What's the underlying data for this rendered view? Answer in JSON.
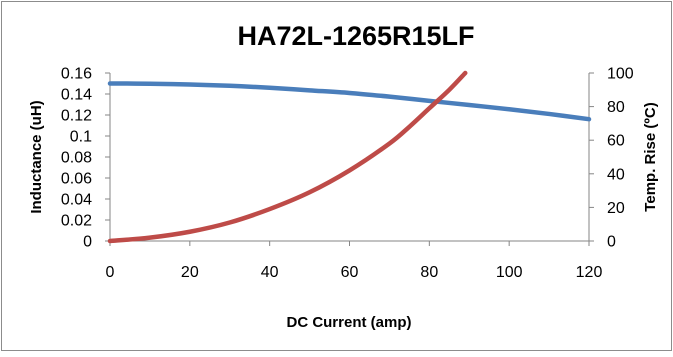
{
  "chart_data": {
    "type": "line",
    "title": "HA72L-1265R15LF",
    "xlabel": "DC Current (amp)",
    "ylabel": "Inductance (uH)",
    "y2label": "Temp. Rise (ºC)",
    "xlim": [
      0,
      120
    ],
    "ylim": [
      0,
      0.16
    ],
    "y2lim": [
      0,
      100
    ],
    "x_ticks": [
      "0",
      "20",
      "40",
      "60",
      "80",
      "100",
      "120"
    ],
    "y_ticks": [
      "0",
      "0.02",
      "0.04",
      "0.06",
      "0.08",
      "0.1",
      "0.12",
      "0.14",
      "0.16"
    ],
    "y2_ticks": [
      "0",
      "20",
      "40",
      "60",
      "80",
      "100"
    ],
    "grid": false,
    "legend": "none",
    "series": [
      {
        "axis": "left",
        "color": "#4A7EBB",
        "x": [
          0,
          10,
          20,
          30,
          40,
          50,
          60,
          70,
          80,
          90,
          100,
          110,
          120
        ],
        "values": [
          0.15,
          0.1498,
          0.149,
          0.1478,
          0.146,
          0.1435,
          0.141,
          0.1375,
          0.1335,
          0.1295,
          0.1255,
          0.121,
          0.116
        ]
      },
      {
        "axis": "right",
        "color": "#BE4B48",
        "x": [
          0,
          10,
          20,
          30,
          40,
          50,
          60,
          70,
          75,
          80,
          85,
          89
        ],
        "values": [
          0,
          2,
          5.5,
          11,
          19,
          29,
          42,
          58,
          68,
          79,
          90,
          100
        ]
      }
    ]
  }
}
